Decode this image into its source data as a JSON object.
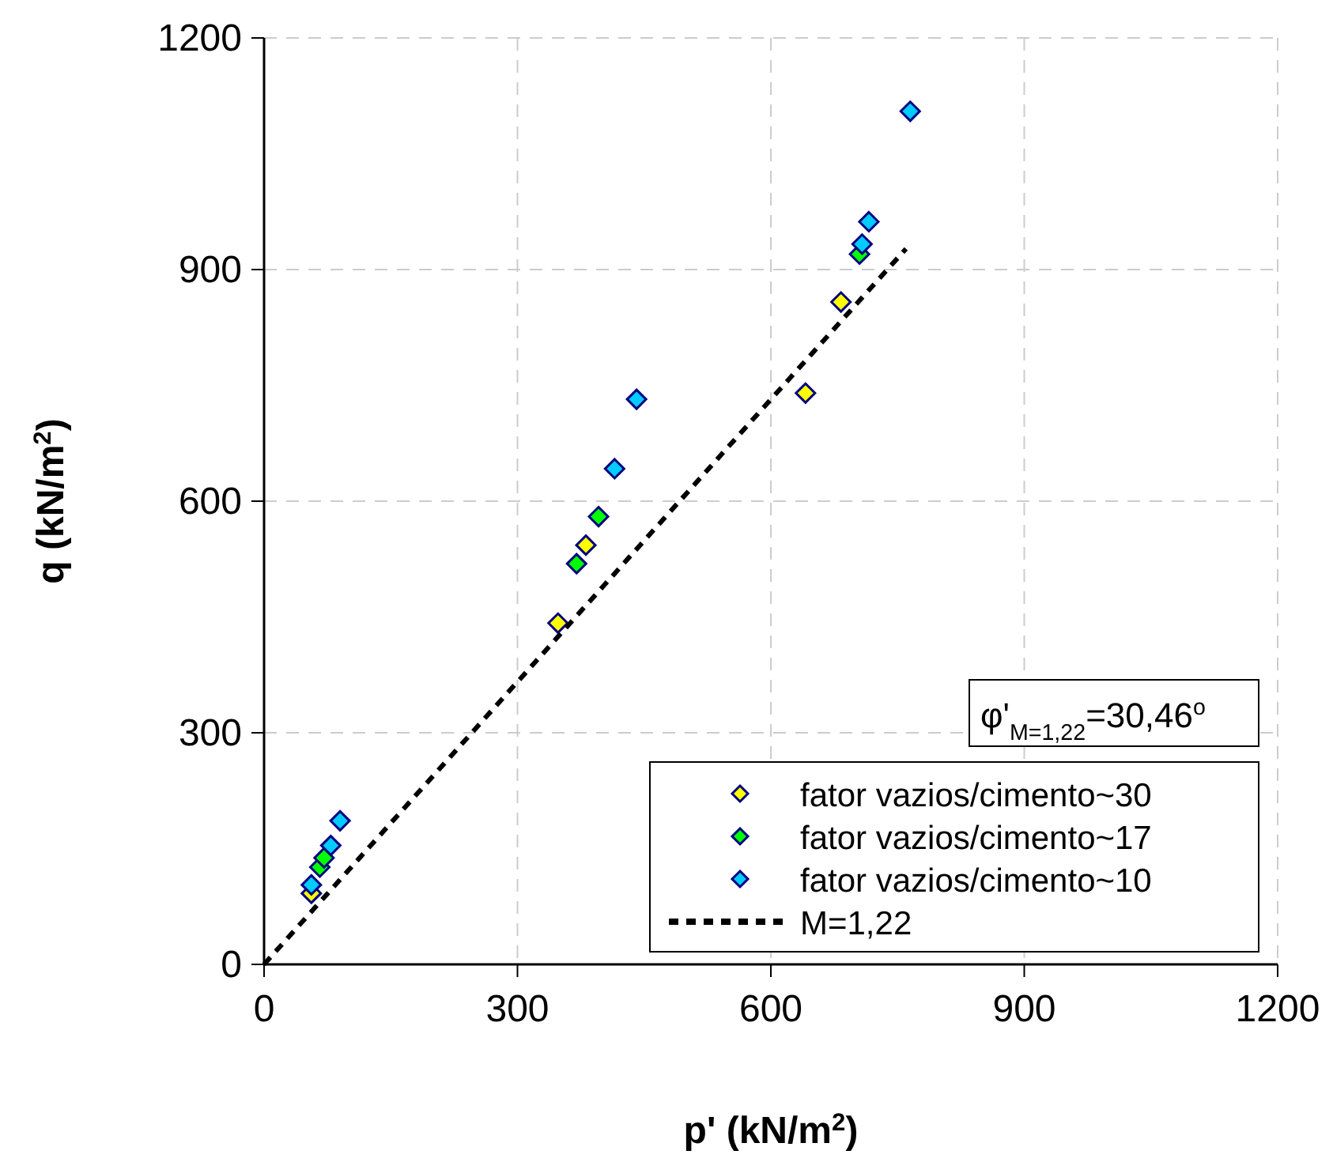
{
  "chart_data": {
    "type": "scatter",
    "xlabel": "p' (kN/m$^{2}$)",
    "ylabel": "q (kN/m$^{2}$)",
    "xlim": [
      0,
      1200
    ],
    "ylim": [
      0,
      1200
    ],
    "xticks": [
      0,
      300,
      600,
      900,
      1200
    ],
    "yticks": [
      0,
      300,
      600,
      900,
      1200
    ],
    "grid": true,
    "legend": "bottom right",
    "marker": "diamond",
    "annotations": [
      "φ'$_{M=1,22}$=30,46$^{o}$"
    ],
    "series": [
      {
        "name": "fator vazios/cimento~30",
        "color": "#ffff00",
        "x": [
          56,
          348,
          381,
          641,
          683
        ],
        "values": [
          92,
          442,
          543,
          740,
          858
        ]
      },
      {
        "name": "fator vazios/cimento~17",
        "color": "#00ff00",
        "x": [
          66,
          71,
          370,
          396,
          705
        ],
        "values": [
          126,
          138,
          519,
          580,
          920
        ]
      },
      {
        "name": "fator vazios/cimento~10",
        "color": "#00ccff",
        "x": [
          56,
          79,
          90,
          415,
          441,
          708,
          716,
          765
        ],
        "values": [
          103,
          154,
          186,
          642,
          732,
          933,
          962,
          1105
        ]
      },
      {
        "name": "M=1,22",
        "type": "line",
        "color": "#000000",
        "line_style": "dashed",
        "marker": "none",
        "x": [
          0,
          760
        ],
        "values": [
          0,
          927
        ]
      }
    ]
  }
}
